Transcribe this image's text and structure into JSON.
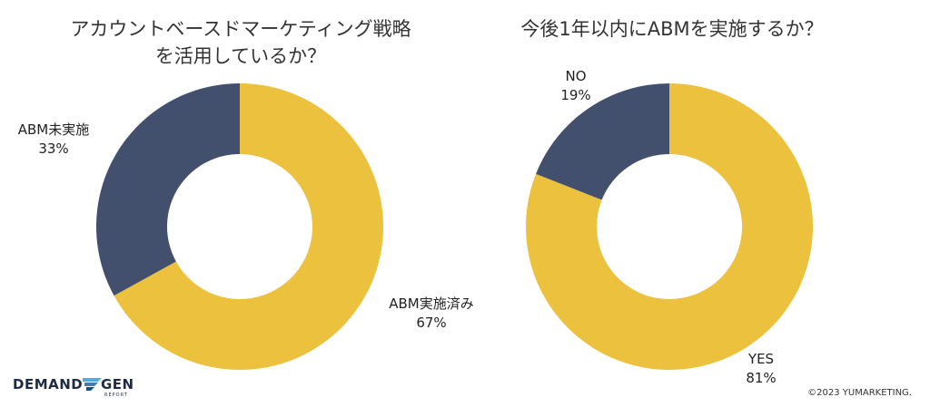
{
  "colors": {
    "yellow": "#ebc13d",
    "navy": "#424f6d"
  },
  "chart_data": [
    {
      "type": "pie",
      "title": "アカウントベースドマーケティング戦略\nを活用しているか？",
      "title_lines": [
        "アカウントベースドマーケティング戦略",
        "を活用しているか？"
      ],
      "slices": [
        {
          "label": "ABM実施済み",
          "value": 67,
          "display": "67%",
          "color": "#ebc13d"
        },
        {
          "label": "ABM未実施",
          "value": 33,
          "display": "33%",
          "color": "#424f6d"
        }
      ]
    },
    {
      "type": "pie",
      "title": "今後1年以内にABMを実施するか？",
      "title_lines": [
        "今後1年以内にABMを実施するか？"
      ],
      "slices": [
        {
          "label": "YES",
          "value": 81,
          "display": "81%",
          "color": "#ebc13d"
        },
        {
          "label": "NO",
          "value": 19,
          "display": "19%",
          "color": "#424f6d"
        }
      ]
    }
  ],
  "logo": {
    "main": "DEMAND",
    "accent": "GEN",
    "sub": "REPORT",
    "icon": "demand-gen-logo-icon"
  },
  "copyright": "©2023 YUMARKETING."
}
